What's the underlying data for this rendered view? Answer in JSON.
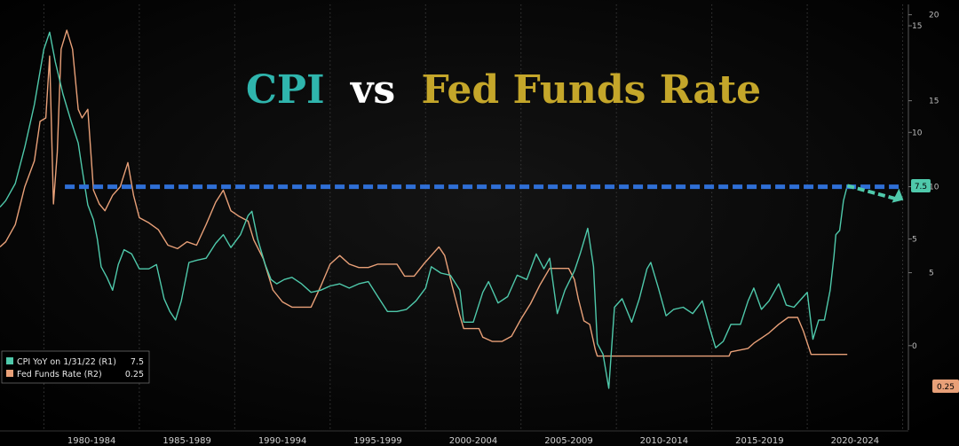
{
  "chart_data": {
    "type": "line",
    "title": {
      "part1": "CPI",
      "part2": "vs",
      "part3": "Fed Funds Rate",
      "colors": {
        "part1": "#2fb5ad",
        "part2": "#ffffff",
        "part3": "#c4a62a"
      }
    },
    "x_range": [
      1977.7,
      2025.3
    ],
    "x_tick_labels": [
      "1980-1984",
      "1985-1989",
      "1990-1994",
      "1995-1999",
      "2000-2004",
      "2005-2009",
      "2010-2014",
      "2015-2019",
      "2020-2024"
    ],
    "x_label_centers": [
      1982.5,
      1987.5,
      1992.5,
      1997.5,
      2002.5,
      2007.5,
      2012.5,
      2017.5,
      2022.5
    ],
    "axis_r1": {
      "ticks": [
        0,
        5,
        10,
        15
      ],
      "range": [
        -4,
        16
      ]
    },
    "axis_r2": {
      "ticks": [
        5,
        10,
        15,
        20
      ],
      "range": [
        -4.2,
        20.6
      ]
    },
    "grid": "vertical dotted",
    "legend_position": "bottom-left",
    "series": [
      {
        "key": "cpi",
        "name": "CPI YoY on 1/31/22 (R1)",
        "last_value": "7.5",
        "color": "#4fc9ab",
        "axis": "r1",
        "points": [
          [
            1977.7,
            6.5
          ],
          [
            1978.0,
            6.8
          ],
          [
            1978.5,
            7.6
          ],
          [
            1979.0,
            9.3
          ],
          [
            1979.5,
            11.3
          ],
          [
            1980.0,
            13.9
          ],
          [
            1980.3,
            14.7
          ],
          [
            1980.6,
            13.3
          ],
          [
            1981.0,
            11.8
          ],
          [
            1981.4,
            10.6
          ],
          [
            1981.8,
            9.5
          ],
          [
            1982.0,
            8.3
          ],
          [
            1982.3,
            6.6
          ],
          [
            1982.6,
            5.9
          ],
          [
            1982.8,
            5.0
          ],
          [
            1983.0,
            3.7
          ],
          [
            1983.3,
            3.2
          ],
          [
            1983.6,
            2.6
          ],
          [
            1983.9,
            3.8
          ],
          [
            1984.2,
            4.5
          ],
          [
            1984.6,
            4.3
          ],
          [
            1985.0,
            3.6
          ],
          [
            1985.5,
            3.6
          ],
          [
            1985.9,
            3.8
          ],
          [
            1986.3,
            2.2
          ],
          [
            1986.6,
            1.6
          ],
          [
            1986.9,
            1.2
          ],
          [
            1987.2,
            2.1
          ],
          [
            1987.6,
            3.9
          ],
          [
            1988.0,
            4.0
          ],
          [
            1988.5,
            4.1
          ],
          [
            1989.0,
            4.8
          ],
          [
            1989.4,
            5.2
          ],
          [
            1989.8,
            4.6
          ],
          [
            1990.3,
            5.2
          ],
          [
            1990.7,
            6.1
          ],
          [
            1990.9,
            6.3
          ],
          [
            1991.2,
            5.0
          ],
          [
            1991.6,
            3.8
          ],
          [
            1991.9,
            3.1
          ],
          [
            1992.2,
            2.9
          ],
          [
            1992.6,
            3.1
          ],
          [
            1993.0,
            3.2
          ],
          [
            1993.5,
            2.9
          ],
          [
            1994.0,
            2.5
          ],
          [
            1994.5,
            2.6
          ],
          [
            1995.0,
            2.8
          ],
          [
            1995.5,
            2.9
          ],
          [
            1996.0,
            2.7
          ],
          [
            1996.5,
            2.9
          ],
          [
            1997.0,
            3.0
          ],
          [
            1997.5,
            2.3
          ],
          [
            1998.0,
            1.6
          ],
          [
            1998.5,
            1.6
          ],
          [
            1999.0,
            1.7
          ],
          [
            1999.5,
            2.1
          ],
          [
            2000.0,
            2.7
          ],
          [
            2000.3,
            3.7
          ],
          [
            2000.8,
            3.4
          ],
          [
            2001.3,
            3.3
          ],
          [
            2001.8,
            2.6
          ],
          [
            2002.0,
            1.1
          ],
          [
            2002.5,
            1.1
          ],
          [
            2003.0,
            2.5
          ],
          [
            2003.3,
            3.0
          ],
          [
            2003.8,
            2.0
          ],
          [
            2004.3,
            2.3
          ],
          [
            2004.8,
            3.3
          ],
          [
            2005.3,
            3.1
          ],
          [
            2005.8,
            4.3
          ],
          [
            2006.2,
            3.6
          ],
          [
            2006.5,
            4.1
          ],
          [
            2006.9,
            1.5
          ],
          [
            2007.3,
            2.6
          ],
          [
            2007.8,
            3.5
          ],
          [
            2008.1,
            4.3
          ],
          [
            2008.5,
            5.5
          ],
          [
            2008.8,
            3.7
          ],
          [
            2009.0,
            0.1
          ],
          [
            2009.3,
            -0.4
          ],
          [
            2009.6,
            -2.0
          ],
          [
            2009.9,
            1.8
          ],
          [
            2010.3,
            2.2
          ],
          [
            2010.8,
            1.1
          ],
          [
            2011.2,
            2.2
          ],
          [
            2011.6,
            3.6
          ],
          [
            2011.8,
            3.9
          ],
          [
            2012.2,
            2.7
          ],
          [
            2012.6,
            1.4
          ],
          [
            2013.0,
            1.7
          ],
          [
            2013.5,
            1.8
          ],
          [
            2014.0,
            1.5
          ],
          [
            2014.5,
            2.1
          ],
          [
            2014.9,
            0.8
          ],
          [
            2015.2,
            -0.1
          ],
          [
            2015.6,
            0.2
          ],
          [
            2016.0,
            1.0
          ],
          [
            2016.5,
            1.0
          ],
          [
            2016.9,
            2.1
          ],
          [
            2017.2,
            2.7
          ],
          [
            2017.6,
            1.7
          ],
          [
            2018.0,
            2.1
          ],
          [
            2018.5,
            2.9
          ],
          [
            2018.9,
            1.9
          ],
          [
            2019.3,
            1.8
          ],
          [
            2019.8,
            2.3
          ],
          [
            2020.0,
            2.5
          ],
          [
            2020.3,
            0.3
          ],
          [
            2020.6,
            1.2
          ],
          [
            2020.9,
            1.2
          ],
          [
            2021.2,
            2.6
          ],
          [
            2021.4,
            4.2
          ],
          [
            2021.5,
            5.2
          ],
          [
            2021.7,
            5.4
          ],
          [
            2021.9,
            6.8
          ],
          [
            2022.1,
            7.5
          ]
        ]
      },
      {
        "key": "fed",
        "name": "Fed Funds Rate (R2)",
        "last_value": "0.25",
        "color": "#e8a078",
        "axis": "r2",
        "points": [
          [
            1977.7,
            6.5
          ],
          [
            1978.0,
            6.8
          ],
          [
            1978.5,
            7.8
          ],
          [
            1979.0,
            10.0
          ],
          [
            1979.5,
            11.5
          ],
          [
            1979.8,
            13.8
          ],
          [
            1980.1,
            14.0
          ],
          [
            1980.3,
            17.6
          ],
          [
            1980.5,
            9.0
          ],
          [
            1980.7,
            12.0
          ],
          [
            1980.9,
            18.0
          ],
          [
            1981.2,
            19.1
          ],
          [
            1981.5,
            18.0
          ],
          [
            1981.8,
            14.5
          ],
          [
            1982.0,
            14.0
          ],
          [
            1982.3,
            14.5
          ],
          [
            1982.6,
            9.8
          ],
          [
            1982.9,
            9.0
          ],
          [
            1983.2,
            8.6
          ],
          [
            1983.6,
            9.5
          ],
          [
            1984.0,
            10.0
          ],
          [
            1984.4,
            11.4
          ],
          [
            1984.7,
            9.5
          ],
          [
            1985.0,
            8.2
          ],
          [
            1985.5,
            7.9
          ],
          [
            1986.0,
            7.5
          ],
          [
            1986.5,
            6.6
          ],
          [
            1987.0,
            6.4
          ],
          [
            1987.5,
            6.8
          ],
          [
            1988.0,
            6.6
          ],
          [
            1988.5,
            7.8
          ],
          [
            1989.0,
            9.1
          ],
          [
            1989.4,
            9.8
          ],
          [
            1989.8,
            8.6
          ],
          [
            1990.2,
            8.3
          ],
          [
            1990.7,
            8.0
          ],
          [
            1991.0,
            6.9
          ],
          [
            1991.5,
            5.8
          ],
          [
            1992.0,
            4.0
          ],
          [
            1992.5,
            3.3
          ],
          [
            1993.0,
            3.0
          ],
          [
            1993.5,
            3.0
          ],
          [
            1994.0,
            3.0
          ],
          [
            1994.5,
            4.2
          ],
          [
            1995.0,
            5.5
          ],
          [
            1995.5,
            6.0
          ],
          [
            1996.0,
            5.5
          ],
          [
            1996.5,
            5.3
          ],
          [
            1997.0,
            5.3
          ],
          [
            1997.5,
            5.5
          ],
          [
            1998.0,
            5.5
          ],
          [
            1998.5,
            5.5
          ],
          [
            1998.9,
            4.8
          ],
          [
            1999.4,
            4.8
          ],
          [
            1999.9,
            5.5
          ],
          [
            2000.3,
            6.0
          ],
          [
            2000.7,
            6.5
          ],
          [
            2001.0,
            6.0
          ],
          [
            2001.4,
            4.2
          ],
          [
            2001.8,
            2.5
          ],
          [
            2002.0,
            1.75
          ],
          [
            2002.8,
            1.75
          ],
          [
            2003.0,
            1.25
          ],
          [
            2003.5,
            1.0
          ],
          [
            2004.0,
            1.0
          ],
          [
            2004.5,
            1.3
          ],
          [
            2005.0,
            2.3
          ],
          [
            2005.5,
            3.2
          ],
          [
            2006.0,
            4.3
          ],
          [
            2006.5,
            5.25
          ],
          [
            2007.0,
            5.25
          ],
          [
            2007.5,
            5.25
          ],
          [
            2007.8,
            4.6
          ],
          [
            2008.0,
            3.5
          ],
          [
            2008.3,
            2.2
          ],
          [
            2008.6,
            2.0
          ],
          [
            2008.9,
            0.5
          ],
          [
            2009.0,
            0.15
          ],
          [
            2012.0,
            0.15
          ],
          [
            2015.9,
            0.15
          ],
          [
            2016.0,
            0.4
          ],
          [
            2016.9,
            0.6
          ],
          [
            2017.2,
            0.9
          ],
          [
            2017.6,
            1.2
          ],
          [
            2018.0,
            1.5
          ],
          [
            2018.5,
            2.0
          ],
          [
            2019.0,
            2.4
          ],
          [
            2019.5,
            2.4
          ],
          [
            2019.8,
            1.6
          ],
          [
            2020.2,
            0.25
          ],
          [
            2022.1,
            0.25
          ]
        ]
      }
    ],
    "annotation": {
      "dashed_level_r2": 10.0,
      "dashed_color": "#2f6fd6",
      "arrow_color": "#4fc9ab",
      "from_x": 1981.1,
      "to_x": 2024.9
    }
  }
}
